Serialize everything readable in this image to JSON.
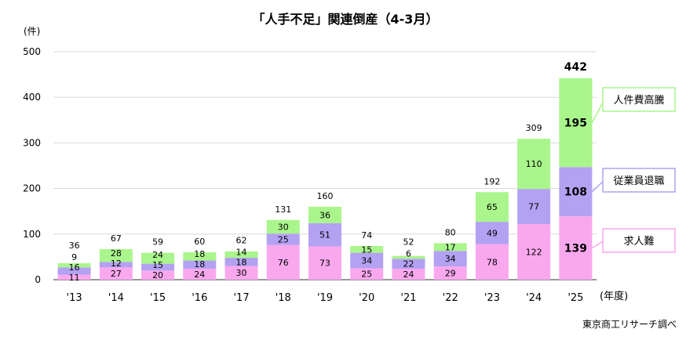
{
  "chart_data": {
    "type": "bar",
    "stacked": true,
    "title": "「人手不足」関連倒産（4-3月）",
    "ylabel": "(件)",
    "xlabel": "(年度)",
    "source": "東京商工リサーチ調べ",
    "ylim": [
      0,
      500
    ],
    "yticks": [
      0,
      100,
      200,
      300,
      400,
      500
    ],
    "grid": true,
    "categories": [
      "'13",
      "'14",
      "'15",
      "'16",
      "'17",
      "'18",
      "'19",
      "'20",
      "'21",
      "'22",
      "'23",
      "'24",
      "'25"
    ],
    "series": [
      {
        "name": "求人難",
        "color": "#f9a8ee",
        "values": [
          11,
          27,
          20,
          24,
          30,
          76,
          73,
          25,
          24,
          29,
          78,
          122,
          139
        ]
      },
      {
        "name": "従業員退職",
        "color": "#b3a1f2",
        "values": [
          16,
          12,
          15,
          18,
          18,
          25,
          51,
          34,
          22,
          34,
          49,
          77,
          108
        ]
      },
      {
        "name": "人件費高騰",
        "color": "#aaf58c",
        "values": [
          9,
          28,
          24,
          18,
          14,
          30,
          36,
          15,
          6,
          17,
          65,
          110,
          195
        ]
      }
    ],
    "totals": [
      36,
      67,
      59,
      60,
      62,
      131,
      160,
      74,
      52,
      80,
      192,
      309,
      442
    ]
  }
}
